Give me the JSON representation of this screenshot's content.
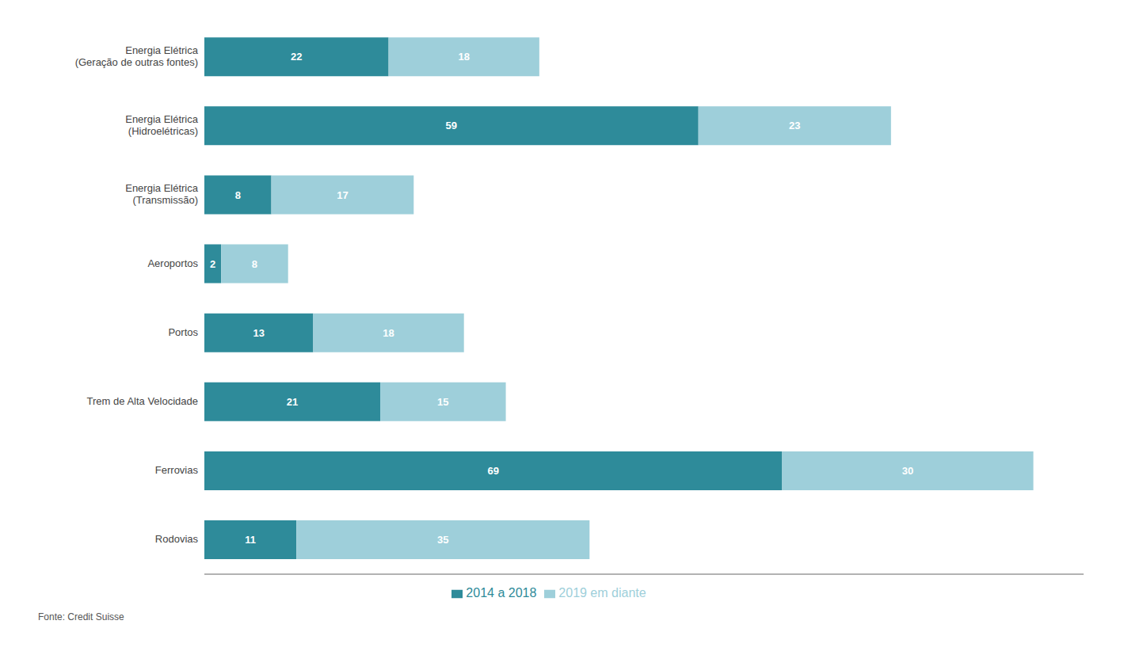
{
  "chart_data": {
    "type": "bar",
    "orientation": "horizontal",
    "stacked": true,
    "categories": [
      "Energia Elétrica\n(Geração de outras fontes)",
      "Energia Elétrica\n(Hidroelétricas)",
      "Energia Elétrica\n(Transmissão)",
      "Aeroportos",
      "Portos",
      "Trem de Alta Velocidade",
      "Ferrovias",
      "Rodovias"
    ],
    "series": [
      {
        "name": "2014 a 2018",
        "color": "#2e8b9a",
        "values": [
          22,
          59,
          8,
          2,
          13,
          21,
          69,
          11
        ]
      },
      {
        "name": "2019 em diante",
        "color": "#9ecfda",
        "values": [
          18,
          23,
          17,
          8,
          18,
          15,
          30,
          35
        ]
      }
    ],
    "xlim": [
      0,
      105
    ],
    "xticks": [],
    "tick_labels": "y",
    "data_labels": true,
    "grid": false,
    "legend": "bottom",
    "annotations": [
      "Fonte: Credit Suisse"
    ]
  }
}
